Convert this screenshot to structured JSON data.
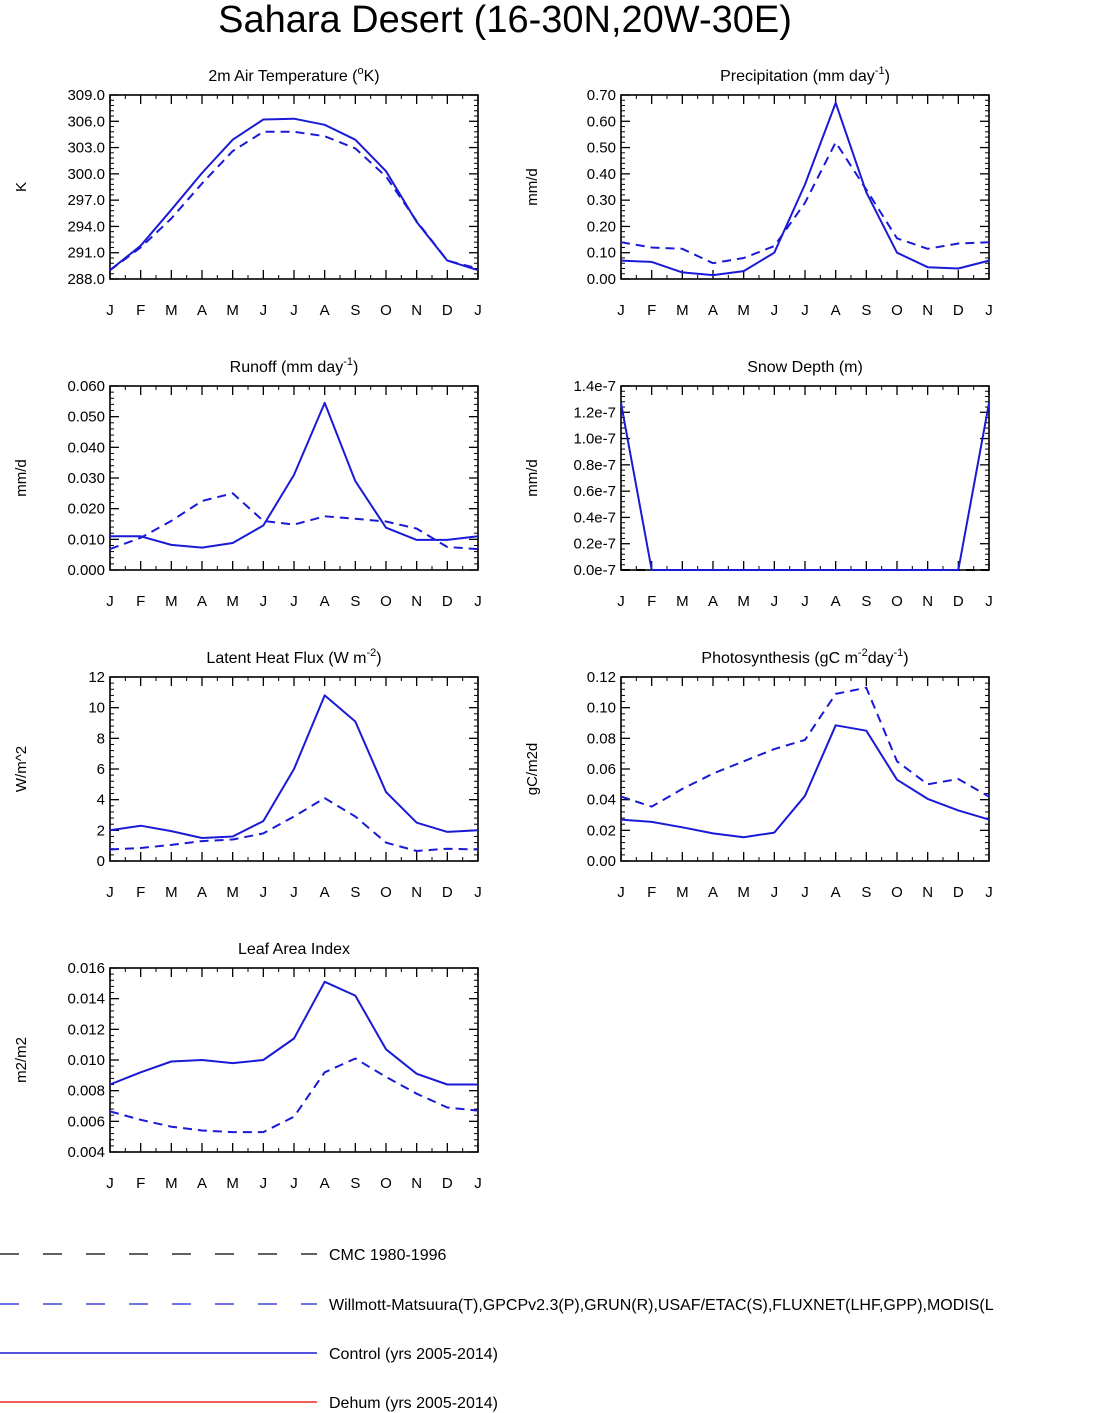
{
  "figure": {
    "title": "Sahara Desert (16-30N,20W-30E)",
    "months": [
      "J",
      "F",
      "M",
      "A",
      "M",
      "J",
      "J",
      "A",
      "S",
      "O",
      "N",
      "D",
      "J"
    ]
  },
  "chart_data": [
    {
      "type": "line",
      "id": "t2m",
      "title_parts": [
        "2m Air Temperature (",
        "o",
        "K)"
      ],
      "title_styles": [
        "n",
        "sup",
        "n"
      ],
      "ylabel": "K",
      "ylim": [
        288.0,
        309.0
      ],
      "yticks": [
        288.0,
        291.0,
        294.0,
        297.0,
        300.0,
        303.0,
        306.0,
        309.0
      ],
      "ytick_labels": [
        "288.0",
        "291.0",
        "294.0",
        "297.0",
        "300.0",
        "303.0",
        "306.0",
        "309.0"
      ],
      "categories": [
        "J",
        "F",
        "M",
        "A",
        "M",
        "J",
        "J",
        "A",
        "S",
        "O",
        "N",
        "D",
        "J"
      ],
      "series": [
        {
          "name": "obs",
          "style": "dashed",
          "color": "#1a1ad6",
          "values": [
            289.0,
            291.6,
            294.9,
            298.9,
            302.6,
            304.8,
            304.8,
            304.3,
            302.9,
            299.7,
            294.6,
            290.1,
            289.2
          ]
        },
        {
          "name": "control",
          "style": "solid",
          "color": "#1a1ad6",
          "values": [
            289.0,
            291.8,
            295.9,
            300.1,
            303.9,
            306.2,
            306.3,
            305.6,
            303.9,
            300.3,
            294.5,
            290.1,
            289.0
          ]
        }
      ]
    },
    {
      "type": "line",
      "id": "precip",
      "title_parts": [
        "Precipitation (mm day",
        "-1",
        ")"
      ],
      "title_styles": [
        "n",
        "sup",
        "n"
      ],
      "ylabel": "mm/d",
      "ylim": [
        0.0,
        0.7
      ],
      "yticks": [
        0.0,
        0.1,
        0.2,
        0.3,
        0.4,
        0.5,
        0.6,
        0.7
      ],
      "ytick_labels": [
        "0.00",
        "0.10",
        "0.20",
        "0.30",
        "0.40",
        "0.50",
        "0.60",
        "0.70"
      ],
      "categories": [
        "J",
        "F",
        "M",
        "A",
        "M",
        "J",
        "J",
        "A",
        "S",
        "O",
        "N",
        "D",
        "J"
      ],
      "series": [
        {
          "name": "obs",
          "style": "dashed",
          "color": "#1a1ad6",
          "values": [
            0.14,
            0.12,
            0.115,
            0.06,
            0.08,
            0.125,
            0.29,
            0.52,
            0.34,
            0.155,
            0.115,
            0.135,
            0.14
          ]
        },
        {
          "name": "control",
          "style": "solid",
          "color": "#1a1ad6",
          "values": [
            0.07,
            0.065,
            0.025,
            0.015,
            0.03,
            0.1,
            0.36,
            0.67,
            0.33,
            0.1,
            0.045,
            0.04,
            0.07
          ]
        }
      ]
    },
    {
      "type": "line",
      "id": "runoff",
      "title_parts": [
        "Runoff (mm day",
        "-1",
        ")"
      ],
      "title_styles": [
        "n",
        "sup",
        "n"
      ],
      "ylabel": "mm/d",
      "ylim": [
        0.0,
        0.06
      ],
      "yticks": [
        0.0,
        0.01,
        0.02,
        0.03,
        0.04,
        0.05,
        0.06
      ],
      "ytick_labels": [
        "0.000",
        "0.010",
        "0.020",
        "0.030",
        "0.040",
        "0.050",
        "0.060"
      ],
      "categories": [
        "J",
        "F",
        "M",
        "A",
        "M",
        "J",
        "J",
        "A",
        "S",
        "O",
        "N",
        "D",
        "J"
      ],
      "series": [
        {
          "name": "obs",
          "style": "dashed",
          "color": "#1a1ad6",
          "values": [
            0.0068,
            0.0105,
            0.016,
            0.0225,
            0.025,
            0.016,
            0.0148,
            0.0175,
            0.0167,
            0.0158,
            0.0135,
            0.0075,
            0.0068
          ]
        },
        {
          "name": "control",
          "style": "solid",
          "color": "#1a1ad6",
          "values": [
            0.011,
            0.011,
            0.0082,
            0.0073,
            0.0088,
            0.0145,
            0.031,
            0.0545,
            0.029,
            0.0138,
            0.0098,
            0.0098,
            0.011
          ]
        }
      ]
    },
    {
      "type": "line",
      "id": "snow",
      "title_parts": [
        "Snow Depth (m)"
      ],
      "title_styles": [
        "n"
      ],
      "ylabel": "mm/d",
      "ylim": [
        0.0,
        1.4e-07
      ],
      "yticks": [
        0.0,
        2e-08,
        4e-08,
        6e-08,
        8e-08,
        1e-07,
        1.2e-07,
        1.4e-07
      ],
      "ytick_labels": [
        "0.0e-7",
        "0.2e-7",
        "0.4e-7",
        "0.6e-7",
        "0.8e-7",
        "1.0e-7",
        "1.2e-7",
        "1.4e-7"
      ],
      "categories": [
        "J",
        "F",
        "M",
        "A",
        "M",
        "J",
        "J",
        "A",
        "S",
        "O",
        "N",
        "D",
        "J"
      ],
      "series": [
        {
          "name": "obs",
          "style": "dashed",
          "color": "#000000",
          "values": [
            0,
            0,
            0,
            0,
            0,
            0,
            0,
            0,
            0,
            0,
            0,
            0,
            0
          ]
        },
        {
          "name": "control",
          "style": "solid",
          "color": "#1a1ad6",
          "values": [
            1.27e-07,
            0,
            0,
            0,
            0,
            0,
            0,
            0,
            0,
            0,
            0,
            0,
            1.27e-07
          ]
        }
      ]
    },
    {
      "type": "line",
      "id": "lhf",
      "title_parts": [
        "Latent Heat Flux (W m",
        "-2",
        ")"
      ],
      "title_styles": [
        "n",
        "sup",
        "n"
      ],
      "ylabel": "W/m^2",
      "ylim": [
        0,
        12
      ],
      "yticks": [
        0,
        2,
        4,
        6,
        8,
        10,
        12
      ],
      "ytick_labels": [
        "0",
        "2",
        "4",
        "6",
        "8",
        "10",
        "12"
      ],
      "categories": [
        "J",
        "F",
        "M",
        "A",
        "M",
        "J",
        "J",
        "A",
        "S",
        "O",
        "N",
        "D",
        "J"
      ],
      "series": [
        {
          "name": "obs",
          "style": "dashed",
          "color": "#1a1ad6",
          "values": [
            0.75,
            0.85,
            1.05,
            1.3,
            1.4,
            1.8,
            2.9,
            4.1,
            2.9,
            1.2,
            0.65,
            0.8,
            0.75
          ]
        },
        {
          "name": "control",
          "style": "solid",
          "color": "#1a1ad6",
          "values": [
            2.0,
            2.3,
            1.95,
            1.5,
            1.6,
            2.6,
            6.0,
            10.8,
            9.1,
            4.5,
            2.5,
            1.9,
            2.0
          ]
        }
      ]
    },
    {
      "type": "line",
      "id": "gpp",
      "title_parts": [
        "Photosynthesis (gC m",
        "-2",
        "day",
        "-1",
        ")"
      ],
      "title_styles": [
        "n",
        "sup",
        "n",
        "sup",
        "n"
      ],
      "ylabel": "gC/m2d",
      "ylim": [
        0.0,
        0.12
      ],
      "yticks": [
        0.0,
        0.02,
        0.04,
        0.06,
        0.08,
        0.1,
        0.12
      ],
      "ytick_labels": [
        "0.00",
        "0.02",
        "0.04",
        "0.06",
        "0.08",
        "0.10",
        "0.12"
      ],
      "categories": [
        "J",
        "F",
        "M",
        "A",
        "M",
        "J",
        "J",
        "A",
        "S",
        "O",
        "N",
        "D",
        "J"
      ],
      "series": [
        {
          "name": "obs",
          "style": "dashed",
          "color": "#1a1ad6",
          "values": [
            0.042,
            0.0355,
            0.047,
            0.057,
            0.065,
            0.073,
            0.079,
            0.109,
            0.113,
            0.065,
            0.05,
            0.0535,
            0.042
          ]
        },
        {
          "name": "control",
          "style": "solid",
          "color": "#1a1ad6",
          "values": [
            0.027,
            0.0255,
            0.022,
            0.018,
            0.0155,
            0.0185,
            0.0425,
            0.0885,
            0.085,
            0.053,
            0.0405,
            0.033,
            0.027
          ]
        }
      ]
    },
    {
      "type": "line",
      "id": "lai",
      "title_parts": [
        "Leaf Area Index"
      ],
      "title_styles": [
        "n"
      ],
      "ylabel": "m2/m2",
      "ylim": [
        0.004,
        0.016
      ],
      "yticks": [
        0.004,
        0.006,
        0.008,
        0.01,
        0.012,
        0.014,
        0.016
      ],
      "ytick_labels": [
        "0.004",
        "0.006",
        "0.008",
        "0.010",
        "0.012",
        "0.014",
        "0.016"
      ],
      "categories": [
        "J",
        "F",
        "M",
        "A",
        "M",
        "J",
        "J",
        "A",
        "S",
        "O",
        "N",
        "D",
        "J"
      ],
      "series": [
        {
          "name": "obs",
          "style": "dashed",
          "color": "#1a1ad6",
          "values": [
            0.00665,
            0.0061,
            0.00565,
            0.0054,
            0.0053,
            0.0053,
            0.0063,
            0.0092,
            0.0101,
            0.0089,
            0.0078,
            0.0069,
            0.0067
          ]
        },
        {
          "name": "control",
          "style": "solid",
          "color": "#1a1ad6",
          "values": [
            0.0084,
            0.0092,
            0.0099,
            0.01,
            0.0098,
            0.01,
            0.0114,
            0.0151,
            0.0142,
            0.0107,
            0.0091,
            0.0084,
            0.0084
          ]
        }
      ]
    }
  ],
  "legend": [
    {
      "label": "CMC 1980-1996",
      "style": "dashed",
      "color": "#000000"
    },
    {
      "label": "Willmott-Matsuura(T),GPCPv2.3(P),GRUN(R),USAF/ETAC(S),FLUXNET(LHF,GPP),MODIS(L",
      "style": "dashed",
      "color": "#1a1ad6"
    },
    {
      "label": "Control (yrs 2005-2014)",
      "style": "solid",
      "color": "#1a1ad6"
    },
    {
      "label": "Dehum (yrs 2005-2014)",
      "style": "solid",
      "color": "#e8281e"
    }
  ]
}
